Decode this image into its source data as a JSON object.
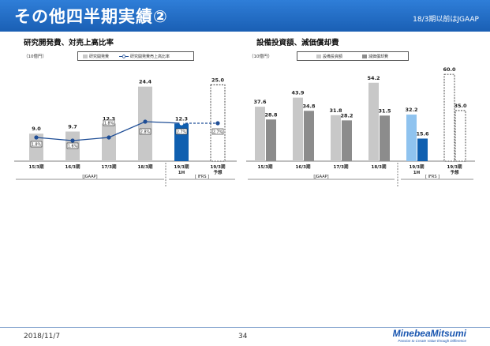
{
  "header": {
    "title": "その他四半期実績②",
    "note": "18/3期以前はJGAAP"
  },
  "left_panel": {
    "title": "研究開発費、対売上高比率",
    "unit": "（10億円）",
    "legend": [
      "研究開発費",
      "研究開発費売上高比率"
    ],
    "gaap_label": "[JGAAP]",
    "ifrs_label": "[ IFRS ]"
  },
  "right_panel": {
    "title": "設備投資額、減価償却費",
    "unit": "（10億円）",
    "legend": [
      "設備投資額",
      "減価償却費"
    ],
    "gaap_label": "[JGAAP]",
    "ifrs_label": "[ IFRS ]"
  },
  "colors": {
    "bar_gray": "#c8c8c8",
    "bar_dark_gray": "#8c8c8c",
    "bar_blue": "#0f5fb0",
    "bar_light_blue": "#8fc3ef",
    "line": "#1f4e96"
  },
  "chart_data": [
    {
      "type": "bar",
      "categories": [
        "15/3期",
        "16/3期",
        "17/3期",
        "18/3期",
        "19/3期\n1H",
        "19/3期\n予想"
      ],
      "series": [
        {
          "name": "研究開発費",
          "values": [
            9.0,
            9.7,
            12.3,
            24.4,
            12.3,
            25.0
          ]
        },
        {
          "name": "研究開発費売上高比率",
          "values": [
            1.8,
            1.6,
            1.8,
            2.8,
            2.7,
            2.7
          ],
          "value_labels": [
            "1.8%",
            "1.6%",
            "1.8%",
            "2.8%",
            "2.7%",
            "2.7%"
          ]
        }
      ],
      "value_labels": [
        "9.0",
        "9.7",
        "12.3",
        "24.4",
        "12.3",
        "25.0"
      ],
      "title": "研究開発費、対売上高比率",
      "ylabel": "（10億円）",
      "ylim": [
        0,
        30
      ]
    },
    {
      "type": "bar",
      "categories": [
        "15/3期",
        "16/3期",
        "17/3期",
        "18/3期",
        "19/3期\n1H",
        "19/3期\n予想"
      ],
      "series": [
        {
          "name": "設備投資額",
          "values": [
            37.6,
            43.9,
            31.8,
            54.2,
            32.2,
            60.0
          ],
          "value_labels": [
            "37.6",
            "43.9",
            "31.8",
            "54.2",
            "32.2",
            "60.0"
          ]
        },
        {
          "name": "減価償却費",
          "values": [
            28.8,
            34.8,
            28.2,
            31.5,
            15.6,
            35.0
          ],
          "value_labels": [
            "28.8",
            "34.8",
            "28.2",
            "31.5",
            "15.6",
            "35.0"
          ]
        }
      ],
      "title": "設備投資額、減価償却費",
      "ylabel": "（10億円）",
      "ylim": [
        0,
        65
      ]
    }
  ],
  "footer": {
    "date": "2018/11/7",
    "page": "34",
    "logo_name": "MinebeaMitsumi",
    "logo_tag": "Passion to Create Value through Difference"
  }
}
